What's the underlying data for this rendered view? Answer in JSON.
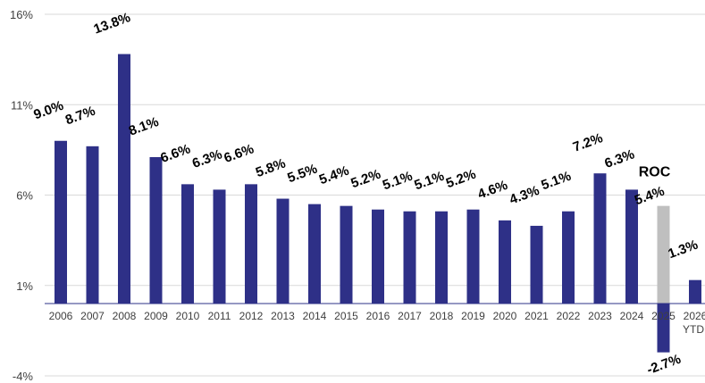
{
  "chart_data": {
    "type": "bar",
    "title": "",
    "xlabel": "",
    "ylabel": "",
    "ylim": [
      -4,
      16
    ],
    "yticks": [
      "-4%",
      "1%",
      "6%",
      "11%",
      "16%"
    ],
    "yticks_values": [
      -4,
      1,
      6,
      11,
      16
    ],
    "grid": true,
    "categories": [
      "2006",
      "2007",
      "2008",
      "2009",
      "2010",
      "2011",
      "2012",
      "2013",
      "2014",
      "2015",
      "2016",
      "2017",
      "2018",
      "2019",
      "2020",
      "2021",
      "2022",
      "2023",
      "2024",
      "2025",
      "2026"
    ],
    "category_sublabels": {
      "2026": "YTD"
    },
    "series": [
      {
        "values": [
          9.0,
          8.7,
          13.8,
          8.1,
          6.6,
          6.3,
          6.6,
          5.8,
          5.5,
          5.4,
          5.2,
          5.1,
          5.1,
          5.2,
          4.6,
          4.3,
          5.1,
          7.2,
          6.3,
          -2.7,
          1.3
        ],
        "labels": [
          "9.0%",
          "8.7%",
          "13.8%",
          "8.1%",
          "6.6%",
          "6.3%",
          "6.6%",
          "5.8%",
          "5.5%",
          "5.4%",
          "5.2%",
          "5.1%",
          "5.1%",
          "5.2%",
          "4.6%",
          "4.3%",
          "5.1%",
          "7.2%",
          "6.3%",
          "-2.7%",
          "1.3%"
        ]
      },
      {
        "name": "ROC",
        "category": "2025",
        "value": 5.4,
        "label": "5.4%"
      }
    ],
    "colors": {
      "main": "#2e3087",
      "roc": "#bfbfbf",
      "grid": "#d9d9d9",
      "axis": "#2e3087"
    }
  }
}
